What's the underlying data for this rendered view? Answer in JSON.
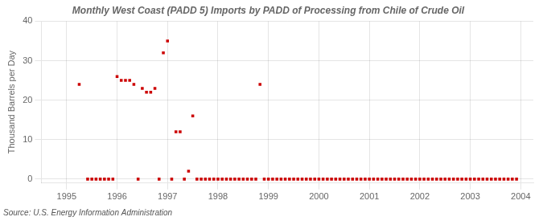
{
  "chart_data": {
    "type": "scatter",
    "title": "Monthly West Coast (PADD 5) Imports by PADD of Processing from Chile of Crude Oil",
    "y_label": "Thousand Barrels per Day",
    "annotations": [
      "Source: U.S. Energy Information Administration"
    ],
    "color": "#cc0000",
    "marker": "square",
    "grid": true,
    "xlim": [
      1994.5,
      2004.25
    ],
    "ylim": [
      -1,
      40
    ],
    "xticks": [
      1995,
      1996,
      1997,
      1998,
      1999,
      2000,
      2001,
      2002,
      2003,
      2004
    ],
    "yticks": [
      0,
      10,
      20,
      30,
      40
    ],
    "x": [
      1995.25,
      1995.417,
      1995.5,
      1995.583,
      1995.667,
      1995.75,
      1995.833,
      1995.917,
      1996,
      1996.083,
      1996.167,
      1996.25,
      1996.333,
      1996.417,
      1996.5,
      1996.583,
      1996.667,
      1996.75,
      1996.833,
      1996.917,
      1997,
      1997.083,
      1997.167,
      1997.25,
      1997.333,
      1997.417,
      1997.5,
      1997.583,
      1997.667,
      1997.75,
      1997.833,
      1997.917,
      1998,
      1998.083,
      1998.167,
      1998.25,
      1998.333,
      1998.417,
      1998.5,
      1998.583,
      1998.667,
      1998.75,
      1998.833,
      1998.917,
      1999,
      1999.083,
      1999.167,
      1999.25,
      1999.333,
      1999.417,
      1999.5,
      1999.583,
      1999.667,
      1999.75,
      1999.833,
      1999.917,
      2000,
      2000.083,
      2000.167,
      2000.25,
      2000.333,
      2000.417,
      2000.5,
      2000.583,
      2000.667,
      2000.75,
      2000.833,
      2000.917,
      2001,
      2001.083,
      2001.167,
      2001.25,
      2001.333,
      2001.417,
      2001.5,
      2001.583,
      2001.667,
      2001.75,
      2001.833,
      2001.917,
      2002,
      2002.083,
      2002.167,
      2002.25,
      2002.333,
      2002.417,
      2002.5,
      2002.583,
      2002.667,
      2002.75,
      2002.833,
      2002.917,
      2003,
      2003.083,
      2003.167,
      2003.25,
      2003.333,
      2003.417,
      2003.5,
      2003.583,
      2003.667,
      2003.75,
      2003.833,
      2003.917
    ],
    "values": [
      24,
      0,
      0,
      0,
      0,
      0,
      0,
      0,
      26,
      25,
      25,
      25,
      24,
      0,
      23,
      22,
      22,
      23,
      0,
      32,
      35,
      0,
      12,
      12,
      0,
      2,
      16,
      0,
      0,
      0,
      0,
      0,
      0,
      0,
      0,
      0,
      0,
      0,
      0,
      0,
      0,
      0,
      24,
      0,
      0,
      0,
      0,
      0,
      0,
      0,
      0,
      0,
      0,
      0,
      0,
      0,
      0,
      0,
      0,
      0,
      0,
      0,
      0,
      0,
      0,
      0,
      0,
      0,
      0,
      0,
      0,
      0,
      0,
      0,
      0,
      0,
      0,
      0,
      0,
      0,
      0,
      0,
      0,
      0,
      0,
      0,
      0,
      0,
      0,
      0,
      0,
      0,
      0,
      0,
      0,
      0,
      0,
      0,
      0,
      0,
      0,
      0,
      0,
      0
    ]
  }
}
